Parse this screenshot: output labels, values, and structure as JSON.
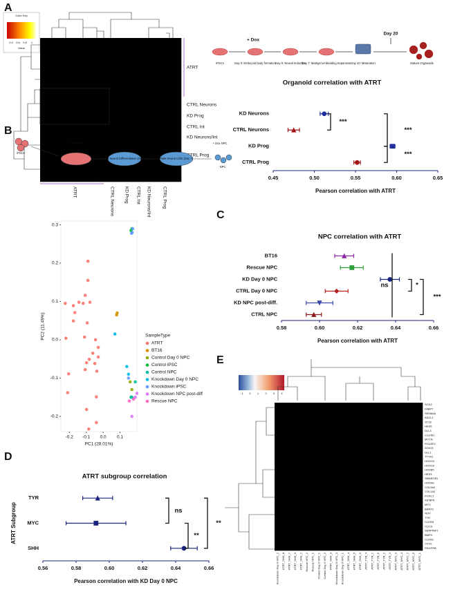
{
  "panel_labels": [
    "A",
    "B",
    "C",
    "D",
    "E"
  ],
  "heatmap_A": {
    "key_title": "Color Key",
    "key_label": "Value",
    "key_ticks": [
      0.4,
      0.6,
      0.8,
      1
    ],
    "row_labels": [
      "ATRT",
      "CTRL Neurons",
      "KD Prog",
      "CTRL Int",
      "KD Neurons/Int",
      "CTRL Prog"
    ],
    "col_labels": [
      "ATRT",
      "CTRL Neurons",
      "KD Prog",
      "CTRL Int",
      "KD Neurons/Int",
      "CTRL Prog"
    ]
  },
  "workflow_A": {
    "dox": "+ Dox",
    "day20": "Day 20",
    "steps": [
      "iPSCs",
      "Day 0: Embryoid body formation",
      "Day 6: Neural Induction",
      "Day 7: Matrigel embedding Expansion",
      "Day 10: Maturation",
      "Mature Organoids"
    ]
  },
  "workflow_B": {
    "steps": [
      "iPSCs",
      "+ Dox Day 0",
      "Short Neural Differentiation (Day 0)",
      "Plate Neural Cells (Day 7)",
      "+ Dox NPC",
      "NPC"
    ]
  },
  "heatmap_E": {
    "key_ticks": [
      -1,
      0,
      1,
      2,
      3,
      4
    ],
    "genes": [
      "SOX2",
      "FABP7",
      "SEMA6A",
      "ASCL1",
      "ST18",
      "HES6",
      "DLL3",
      "C1orf61",
      "MYCN",
      "POU3F2",
      "SOX21",
      "DLL1",
      "TTYH1",
      "HOXC6",
      "HOXC8",
      "HOXB5",
      "HES3",
      "SMARCB1",
      "HOXA5",
      "COL5A2",
      "COL1A2",
      "FOXC1",
      "IGFBP6",
      "MYC",
      "BARX1",
      "NOV",
      "TYR",
      "CLDN3",
      "CLIC6",
      "SERPINF1",
      "BMP4",
      "CLDN1",
      "OTX2",
      "PDGFRB"
    ],
    "samples": [
      "Knockdown Day 0 NPC_2",
      "ATRT_SHH_8",
      "ATRT_SHH_7",
      "ATRT_SHH_9",
      "ATRT_SHH_2",
      "Rescue NPC_2",
      "Rescue NPC_1",
      "Control Day 0 NPC_1",
      "Control Day 0 NPC_2",
      "ATRT_SHH_3",
      "Knockdown Day 0 NPC_3",
      "Knockdown Day 0 NPC_1",
      "ATRT_SHH_4",
      "ATRT_SHH_5",
      "ATRT_SHH_6",
      "ATRT_TYR_4",
      "ATRT_TYR_1",
      "ATRT_TYR_5",
      "ATRT_TYR_2",
      "ATRT_TYR_3",
      "ATRT_MYC_3",
      "ATRT_MYC_4",
      "ATRT_MYC_2",
      "ATRT_MYC_5",
      "ATRT_MYC_1"
    ]
  },
  "chart_data": [
    {
      "type": "errorbar",
      "title": "Organoid correlation with ATRT",
      "x_label": "Pearson correlation with ATRT",
      "categories": [
        "KD Neurons",
        "CTRL Neurons",
        "KD Prog",
        "CTRL Prog"
      ],
      "values": [
        0.512,
        0.475,
        0.595,
        0.552
      ],
      "errors": [
        0.005,
        0.007,
        0.003,
        0.004
      ],
      "colors": [
        "#1f2f9f",
        "#a31515",
        "#1f2f9f",
        "#a31515"
      ],
      "markers": [
        "circle",
        "triangle",
        "square",
        "circle"
      ],
      "xlim": [
        0.45,
        0.65
      ],
      "xticks": [
        0.45,
        {
          "value": 0.5,
          "label": "0.50"
        },
        0.55,
        {
          "value": 0.6,
          "label": "0.60"
        },
        0.65
      ],
      "annotations": [
        "***",
        "***",
        "***"
      ]
    },
    {
      "type": "scatter",
      "x_label": "PC1 (28.01%)",
      "y_label": "PC2 (11.49%)",
      "legend_title": "SampleType",
      "xlim": [
        -0.25,
        0.2
      ],
      "xticks": [
        -0.2,
        -0.1,
        {
          "value": 0,
          "label": "0.0"
        },
        0.1
      ],
      "ylim": [
        -0.24,
        0.31
      ],
      "yticks": [
        -0.2,
        -0.1,
        {
          "value": 0,
          "label": "0.0"
        },
        0.1,
        0.2,
        0.3
      ],
      "series": [
        {
          "name": "ATRT",
          "color": "#F8766D",
          "x": [
            -0.09,
            -0.09,
            -0.106,
            -0.224,
            -0.118,
            -0.176,
            -0.078,
            -0.143,
            -0.167,
            -0.176,
            -0.094,
            -0.22,
            -0.11,
            -0.045,
            -0.029,
            -0.061,
            -0.082,
            -0.029,
            -0.098,
            -0.049,
            -0.037,
            -0.106,
            -0.204,
            -0.21,
            -0.04,
            -0.098,
            -0.04,
            -0.085
          ],
          "y": [
            0.205,
            0.155,
            0.116,
            0.095,
            0.095,
            0.089,
            0.098,
            0.098,
            0.071,
            0.049,
            0.044,
            0.004,
            0.007,
            0.0,
            -0.02,
            -0.035,
            -0.051,
            -0.045,
            -0.06,
            -0.062,
            -0.082,
            -0.078,
            -0.089,
            -0.138,
            -0.149,
            -0.182,
            -0.216,
            -0.233
          ]
        },
        {
          "name": "BT16",
          "color": "#D39200",
          "x": [
            0.08,
            0.083
          ],
          "y": [
            0.065,
            0.07
          ]
        },
        {
          "name": "Control Day 0 NPC",
          "color": "#93AA00",
          "x": [
            0.16,
            0.17
          ],
          "y": [
            -0.11,
            -0.13
          ]
        },
        {
          "name": "Control iPSC",
          "color": "#00BA38",
          "x": [
            0.165,
            0.17
          ],
          "y": [
            0.285,
            0.29
          ]
        },
        {
          "name": "Control NPC",
          "color": "#00C19F",
          "x": [
            0.19,
            0.165,
            0.17
          ],
          "y": [
            -0.11,
            -0.15,
            -0.15
          ]
        },
        {
          "name": "Knockdown Day 0 NPC",
          "color": "#00B9E3",
          "x": [
            0.07,
            0.14,
            0.15
          ],
          "y": [
            0.015,
            -0.07,
            -0.09
          ]
        },
        {
          "name": "Knockdown iPSC",
          "color": "#619CFF",
          "x": [
            0.172,
            0.175,
            0.168,
            0.15
          ],
          "y": [
            0.28,
            0.29,
            0.278,
            -0.1
          ]
        },
        {
          "name": "Knockdown NPC post-diff",
          "color": "#DB72FB",
          "x": [
            0.19,
            0.2,
            0.17
          ],
          "y": [
            -0.15,
            -0.14,
            -0.2
          ]
        },
        {
          "name": "Rescue NPC",
          "color": "#FF61C3",
          "x": [
            0.155,
            0.18
          ],
          "y": [
            -0.16,
            -0.155
          ]
        }
      ]
    },
    {
      "type": "errorbar",
      "title": "NPC correlation with ATRT",
      "x_label": "Pearson correlation with ATRT",
      "categories": [
        "BT16",
        "Rescue NPC",
        "KD Day 0 NPC",
        "CTRL Day 0 NPC",
        "KD NPC post-diff.",
        "CTRL NPC"
      ],
      "values": [
        0.613,
        0.617,
        0.637,
        0.609,
        0.6,
        0.597
      ],
      "errors": [
        0.005,
        0.006,
        0.005,
        0.006,
        0.007,
        0.004
      ],
      "colors": [
        "#8e24aa",
        "#2e9e3a",
        "#1a237e",
        "#b71c1c",
        "#3949ab",
        "#8b1a1a"
      ],
      "markers": [
        "triangle",
        "square",
        "circle",
        "diamond",
        "down",
        "triangle"
      ],
      "xlim": [
        0.58,
        0.66
      ],
      "xticks": [
        0.58,
        {
          "value": 0.6,
          "label": "0.60"
        },
        0.62,
        0.64,
        0.66
      ],
      "annotations": [
        "ns",
        "*",
        "***"
      ]
    },
    {
      "type": "errorbar",
      "title": "ATRT subgroup correlation",
      "x_label": "Pearson correlation with KD Day 0 NPC",
      "y_label": "ATRT Subgroup",
      "categories": [
        "TYR",
        "MYC",
        "SHH"
      ],
      "values": [
        0.593,
        0.592,
        0.645
      ],
      "errors": [
        0.009,
        0.018,
        0.008
      ],
      "colors": [
        "#1a237e",
        "#1a237e",
        "#1a237e"
      ],
      "markers": [
        "triangle",
        "square",
        "circle"
      ],
      "xlim": [
        0.56,
        0.66
      ],
      "xticks": [
        0.56,
        0.58,
        {
          "value": 0.6,
          "label": "0.60"
        },
        0.62,
        0.64,
        0.66
      ],
      "annotations": [
        "ns",
        "**",
        "**"
      ]
    }
  ]
}
